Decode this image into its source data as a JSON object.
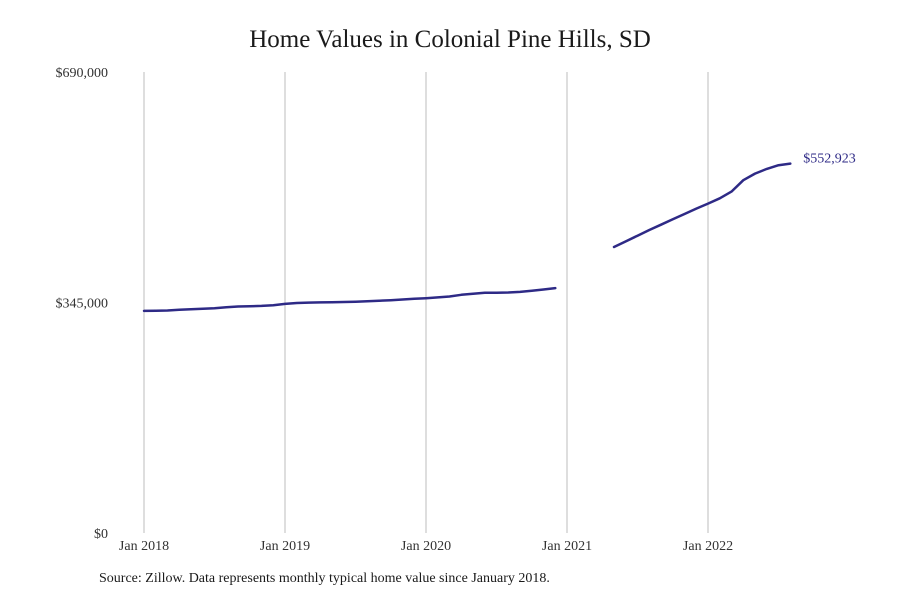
{
  "title": "Home Values in Colonial Pine Hills, SD",
  "source": "Source: Zillow. Data represents monthly typical home value since January 2018.",
  "colors": {
    "line": "#2e2a86",
    "grid": "#bdbdbd"
  },
  "chart_data": {
    "type": "line",
    "title": "Home Values in Colonial Pine Hills, SD",
    "xlabel": "",
    "ylabel": "",
    "x_ticks": [
      "Jan 2018",
      "Jan 2019",
      "Jan 2020",
      "Jan 2021",
      "Jan 2022"
    ],
    "y_ticks": [
      {
        "value": 0,
        "label": "$0"
      },
      {
        "value": 345000,
        "label": "$345,000"
      },
      {
        "value": 690000,
        "label": "$690,000"
      }
    ],
    "ylim": [
      0,
      690000
    ],
    "xlim": [
      "2018-01",
      "2022-12"
    ],
    "grid": "vertical",
    "end_label": "$552,923",
    "segments": [
      {
        "x": [
          "2018-01",
          "2018-02",
          "2018-03",
          "2018-04",
          "2018-05",
          "2018-06",
          "2018-07",
          "2018-08",
          "2018-09",
          "2018-10",
          "2018-11",
          "2018-12",
          "2019-01",
          "2019-02",
          "2019-03",
          "2019-04",
          "2019-05",
          "2019-06",
          "2019-07",
          "2019-08",
          "2019-09",
          "2019-10",
          "2019-11",
          "2019-12",
          "2020-01",
          "2020-02",
          "2020-03",
          "2020-04",
          "2020-05",
          "2020-06",
          "2020-07",
          "2020-08",
          "2020-09",
          "2020-10",
          "2020-11",
          "2020-12"
        ],
        "y": [
          332500,
          332800,
          333100,
          334000,
          334900,
          335600,
          336500,
          338000,
          339000,
          339500,
          339900,
          341000,
          342900,
          344200,
          344800,
          345100,
          345500,
          345800,
          346200,
          346900,
          347700,
          348500,
          349500,
          350500,
          351500,
          352700,
          354000,
          356500,
          358200,
          359500,
          359500,
          360000,
          360800,
          362500,
          364500,
          366500
        ]
      },
      {
        "x": [
          "2021-05",
          "2021-06",
          "2021-07",
          "2021-08",
          "2021-09",
          "2021-10",
          "2021-11",
          "2021-12",
          "2022-01",
          "2022-02",
          "2022-03",
          "2022-04",
          "2022-05",
          "2022-06",
          "2022-07",
          "2022-08"
        ],
        "y": [
          428000,
          436500,
          445000,
          453500,
          461500,
          469500,
          477500,
          485500,
          493000,
          501000,
          511000,
          528000,
          538000,
          545000,
          550500,
          552923
        ]
      }
    ]
  }
}
